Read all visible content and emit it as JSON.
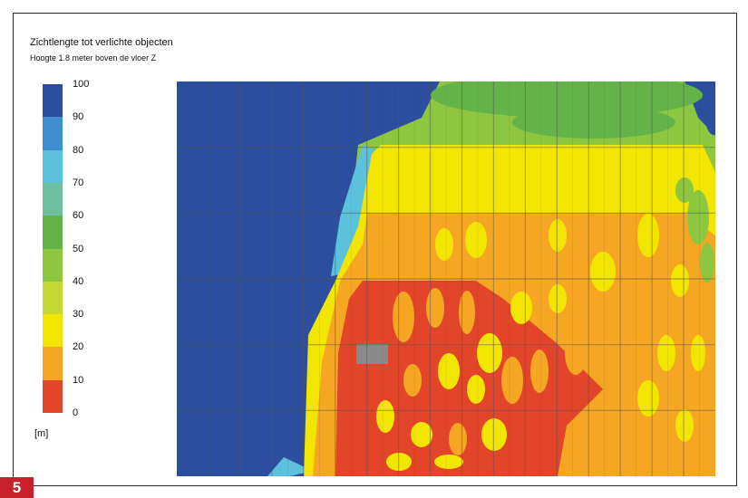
{
  "chart_data": {
    "type": "heatmap",
    "title": "Zichtlengte tot verlichte objecten",
    "subtitle": "Hoogte 1.8 meter boven de vloer Z",
    "unit": "[m]",
    "legend": {
      "ticks": [
        "100",
        "90",
        "80",
        "70",
        "60",
        "50",
        "40",
        "30",
        "20",
        "10",
        "0"
      ],
      "bands": [
        {
          "from": 90,
          "to": 100,
          "color": "#2b4f9e"
        },
        {
          "from": 80,
          "to": 90,
          "color": "#3d8fd0"
        },
        {
          "from": 70,
          "to": 80,
          "color": "#5cc2dc"
        },
        {
          "from": 60,
          "to": 70,
          "color": "#6fc0a0"
        },
        {
          "from": 50,
          "to": 60,
          "color": "#64b348"
        },
        {
          "from": 40,
          "to": 50,
          "color": "#8dc63f"
        },
        {
          "from": 30,
          "to": 40,
          "color": "#c7d630"
        },
        {
          "from": 20,
          "to": 30,
          "color": "#f2e600"
        },
        {
          "from": 10,
          "to": 20,
          "color": "#f5a623"
        },
        {
          "from": 0,
          "to": 10,
          "color": "#e2452a"
        }
      ]
    },
    "grid_cols": 17,
    "grid_rows": 6,
    "grid": true
  },
  "figure_label": "5"
}
